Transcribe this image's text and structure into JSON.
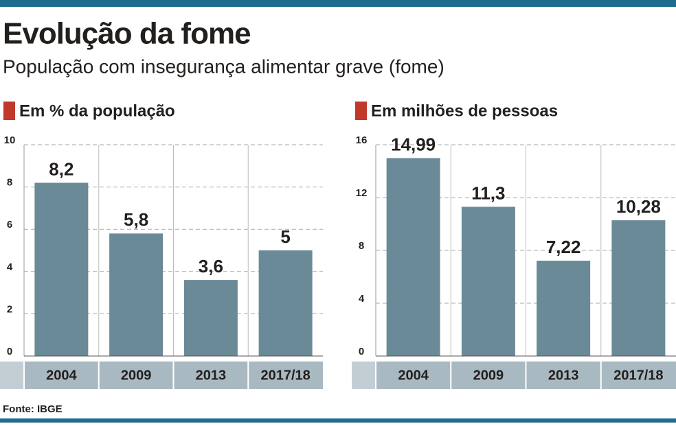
{
  "header": {
    "title": "Evolução da fome",
    "subtitle": "População com insegurança alimentar grave (fome)"
  },
  "source": "Fonte: IBGE",
  "chart_data": [
    {
      "type": "bar",
      "title": "Em % da população",
      "categories": [
        "2004",
        "2009",
        "2013",
        "2017/18"
      ],
      "values": [
        8.2,
        5.8,
        3.6,
        5
      ],
      "value_labels": [
        "8,2",
        "5,8",
        "3,6",
        "5"
      ],
      "color": "#6a8a98",
      "ylim": [
        0,
        10
      ],
      "yticks": [
        0,
        2,
        4,
        6,
        8,
        10
      ],
      "grid": true
    },
    {
      "type": "bar",
      "title": "Em milhões de pessoas",
      "categories": [
        "2004",
        "2009",
        "2013",
        "2017/18"
      ],
      "values": [
        14.99,
        11.3,
        7.22,
        10.28
      ],
      "value_labels": [
        "14,99",
        "11,3",
        "7,22",
        "10,28"
      ],
      "color": "#6a8a98",
      "ylim": [
        0,
        16
      ],
      "yticks": [
        0,
        4,
        8,
        12,
        16
      ],
      "grid": true
    }
  ]
}
